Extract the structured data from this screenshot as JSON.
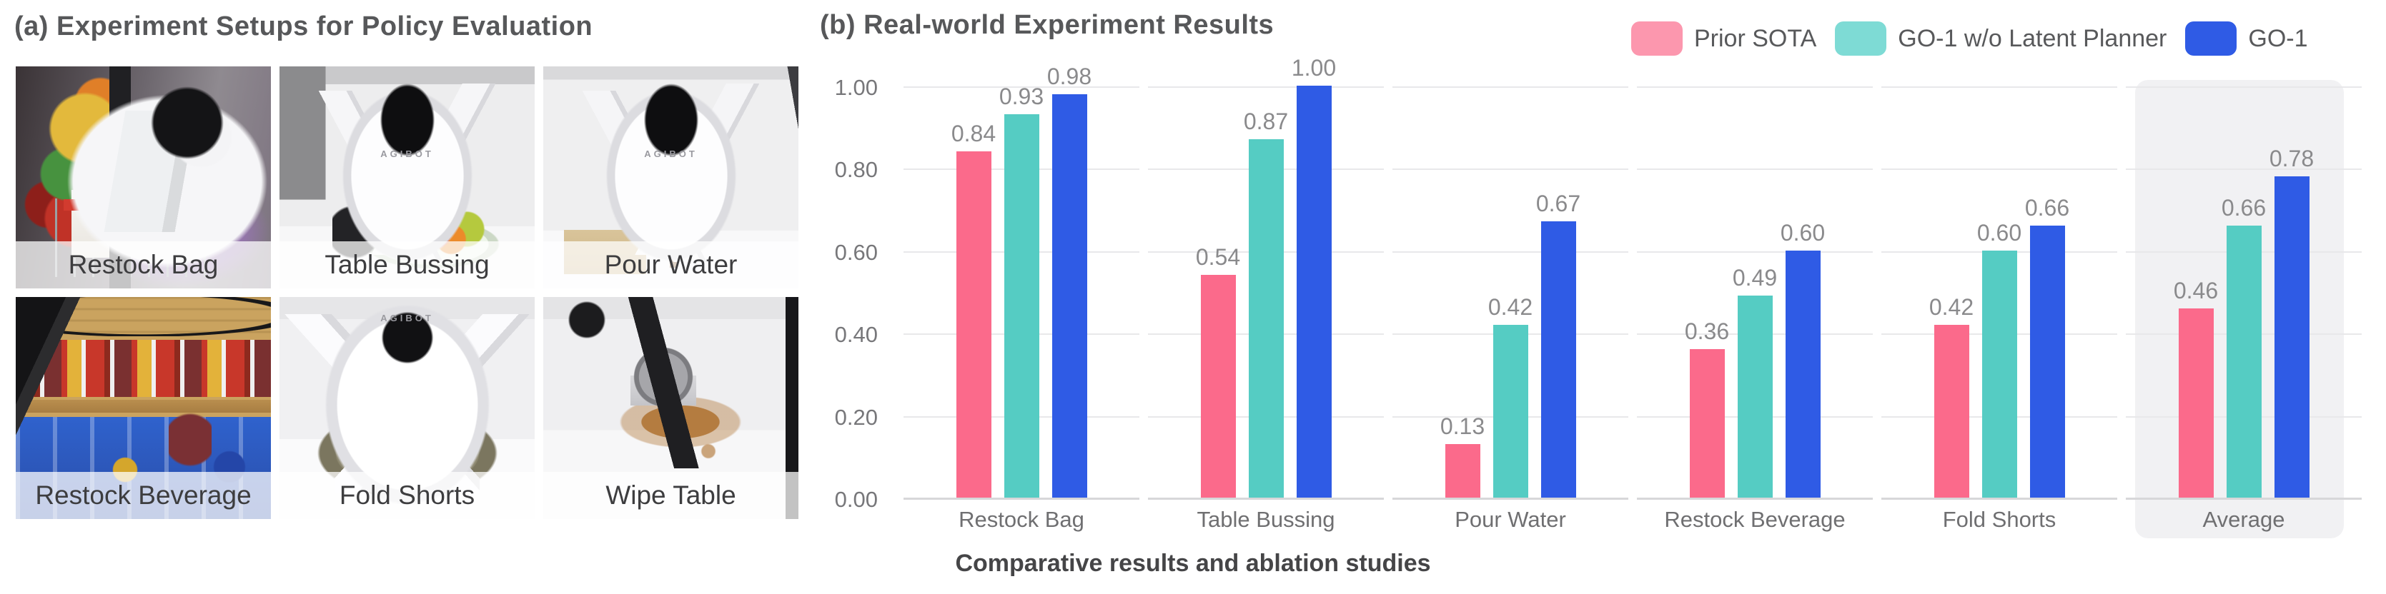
{
  "panel_a": {
    "title": "(a) Experiment Setups for Policy Evaluation",
    "robot_brand": "AGIBOT",
    "photos": [
      {
        "label": "Restock Bag"
      },
      {
        "label": "Table Bussing"
      },
      {
        "label": "Pour Water"
      },
      {
        "label": "Restock Beverage"
      },
      {
        "label": "Fold Shorts"
      },
      {
        "label": "Wipe Table"
      }
    ]
  },
  "panel_b": {
    "title": "(b) Real-world Experiment Results",
    "caption": "Comparative results and ablation studies"
  },
  "chart_data": {
    "type": "bar",
    "title": "(b) Real-world Experiment Results",
    "categories": [
      "Restock Bag",
      "Table Bussing",
      "Pour Water",
      "Restock Beverage",
      "Fold Shorts",
      "Average"
    ],
    "series": [
      {
        "name": "Prior SOTA",
        "color": "#FB6A8B",
        "legend_color": "#FC97AE",
        "values": [
          0.84,
          0.54,
          0.13,
          0.36,
          0.42,
          0.46
        ]
      },
      {
        "name": "GO-1 w/o Latent Planner",
        "color": "#55CCC3",
        "legend_color": "#7EDBD5",
        "values": [
          0.93,
          0.87,
          0.42,
          0.49,
          0.6,
          0.66
        ]
      },
      {
        "name": "GO-1",
        "color": "#2F5BE5",
        "legend_color": "#2F5BE5",
        "values": [
          0.98,
          1.0,
          0.67,
          0.6,
          0.66,
          0.78
        ]
      }
    ],
    "yticks": [
      0.0,
      0.2,
      0.4,
      0.6,
      0.8,
      1.0
    ],
    "ylim": [
      0,
      1.08
    ],
    "grid": true,
    "legend_position": "top-right",
    "highlight_category": "Average",
    "value_label_decimals": 2,
    "xlabel": "",
    "ylabel": ""
  },
  "colors": {
    "title_text": "#57585a",
    "tick_text": "#77777a",
    "value_text": "#8a8a8c",
    "category_text": "#6f6f71",
    "gridline": "#e8e8ea",
    "baseline": "#d7d7d9",
    "highlight_bg": "#f1f1f3",
    "caption_text": "#454547",
    "photo_label_text": "#3d3d3f"
  }
}
